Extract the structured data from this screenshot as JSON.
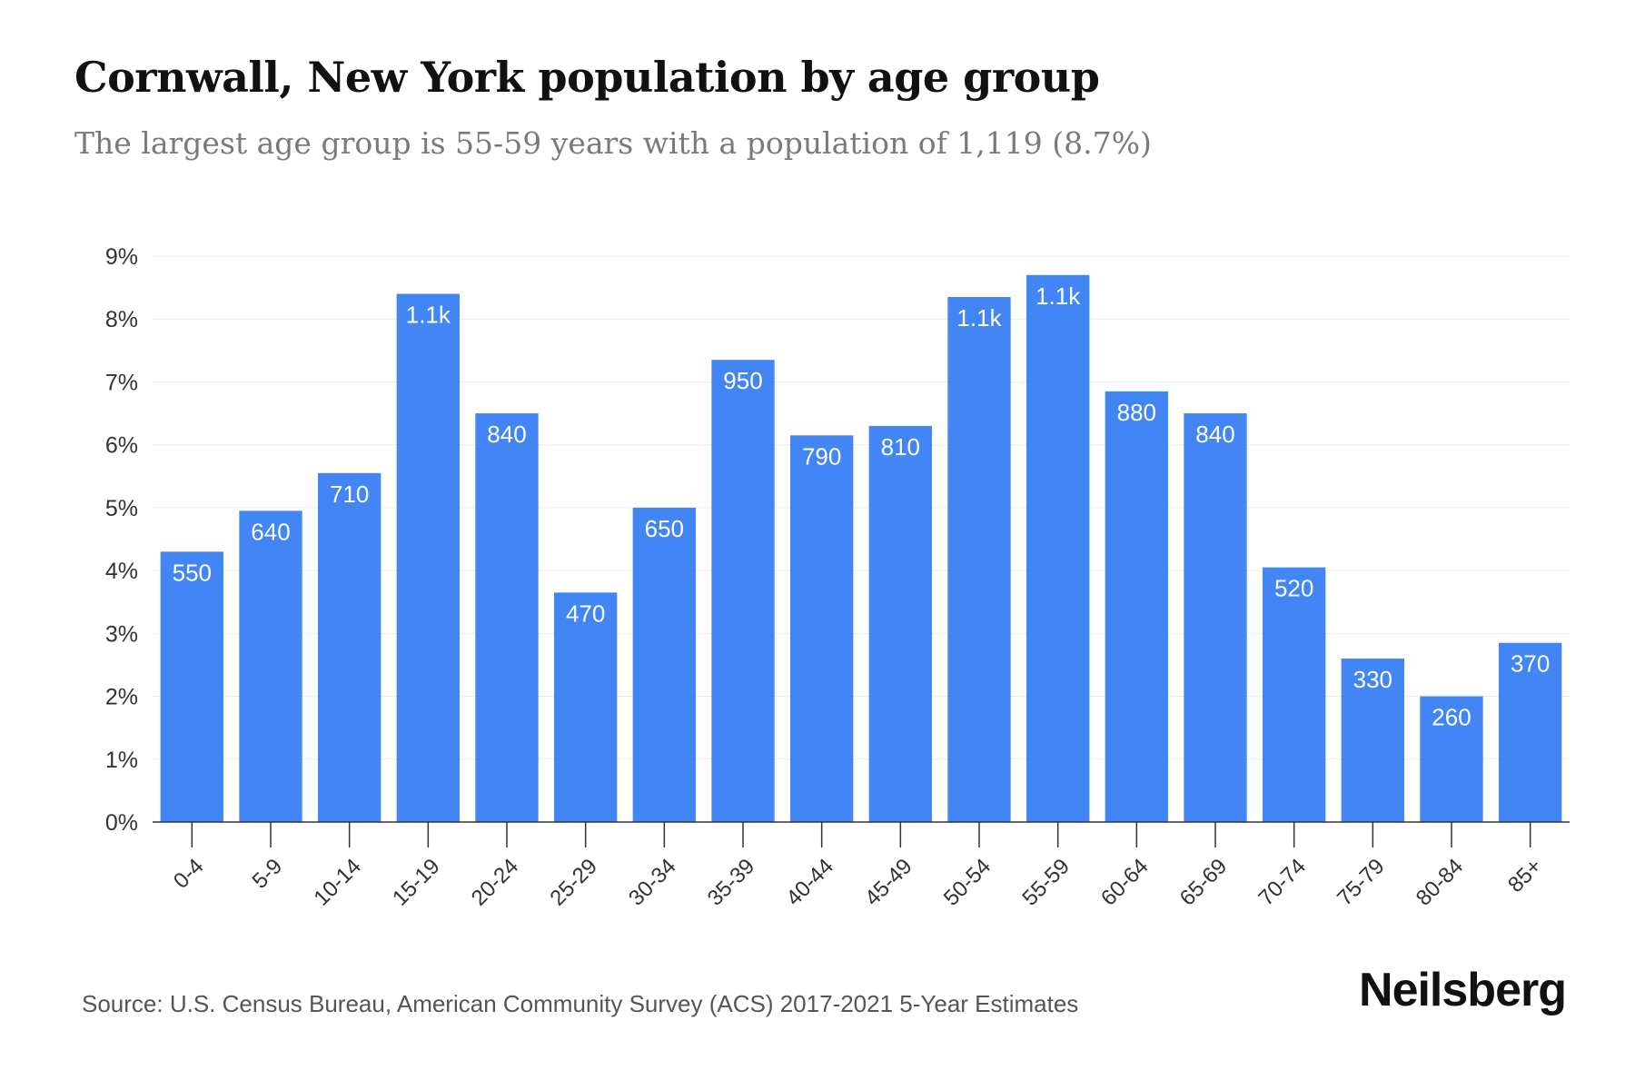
{
  "header": {
    "title": "Cornwall, New York population by age group",
    "subtitle": "The largest age group is 55-59 years with a population of 1,119 (8.7%)"
  },
  "footer": {
    "source": "Source: U.S. Census Bureau, American Community Survey (ACS) 2017-2021 5-Year Estimates",
    "brand": "Neilsberg"
  },
  "chart_data": {
    "type": "bar",
    "categories": [
      "0-4",
      "5-9",
      "10-14",
      "15-19",
      "20-24",
      "25-29",
      "30-34",
      "35-39",
      "40-44",
      "45-49",
      "50-54",
      "55-59",
      "60-64",
      "65-69",
      "70-74",
      "75-79",
      "80-84",
      "85+"
    ],
    "values": [
      4.3,
      4.95,
      5.55,
      8.4,
      6.5,
      3.65,
      5.0,
      7.35,
      6.15,
      6.3,
      8.35,
      8.7,
      6.85,
      6.5,
      4.05,
      2.6,
      2.0,
      2.85
    ],
    "data_labels": [
      "550",
      "640",
      "710",
      "1.1k",
      "840",
      "470",
      "650",
      "950",
      "790",
      "810",
      "1.1k",
      "1.1k",
      "880",
      "840",
      "520",
      "330",
      "260",
      "370"
    ],
    "y_ticks": [
      "0%",
      "1%",
      "2%",
      "3%",
      "4%",
      "5%",
      "6%",
      "7%",
      "8%",
      "9%"
    ],
    "ylim": [
      0,
      9
    ],
    "grid": true,
    "bar_color": "#4285f4"
  }
}
